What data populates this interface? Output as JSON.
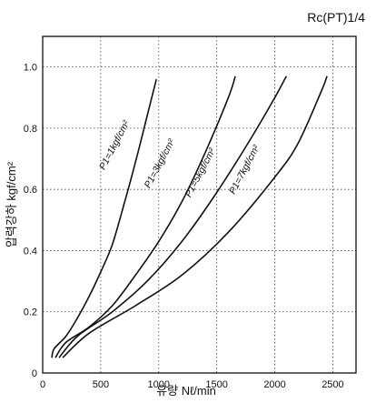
{
  "chart_data": {
    "type": "line",
    "title": "Rc(PT)1/4",
    "xlabel": "유량 Nℓ/min",
    "ylabel": "압력강하 kgf/cm²",
    "xlim": [
      0,
      2700
    ],
    "ylim": [
      0,
      1.1
    ],
    "x_ticks": [
      "0",
      "500",
      "1000",
      "1500",
      "2000",
      "2500"
    ],
    "y_ticks": [
      "0",
      "0.2",
      "0.4",
      "0.6",
      "0.8",
      "1.0"
    ],
    "x_tick_values": [
      0,
      500,
      1000,
      1500,
      2000,
      2500
    ],
    "y_tick_values": [
      0,
      0.2,
      0.4,
      0.6,
      0.8,
      1.0
    ],
    "grid": true,
    "grid_style": "dotted",
    "line_color": "#111111",
    "series": [
      {
        "name": "P1=1kgf/cm²",
        "x": [
          0,
          100,
          200,
          300,
          400,
          500,
          600,
          700,
          800,
          900,
          980
        ],
        "y": [
          0.05,
          0.08,
          0.12,
          0.18,
          0.25,
          0.33,
          0.42,
          0.55,
          0.69,
          0.84,
          0.96
        ]
      },
      {
        "name": "P1=3kgf/cm²",
        "x": [
          0,
          200,
          400,
          600,
          800,
          1000,
          1200,
          1400,
          1600,
          1660
        ],
        "y": [
          0.05,
          0.1,
          0.15,
          0.22,
          0.32,
          0.43,
          0.56,
          0.72,
          0.9,
          0.97
        ]
      },
      {
        "name": "P1=5kgf/cm²",
        "x": [
          0,
          300,
          600,
          900,
          1200,
          1500,
          1800,
          2000,
          2100
        ],
        "y": [
          0.05,
          0.12,
          0.2,
          0.3,
          0.43,
          0.59,
          0.77,
          0.9,
          0.97
        ]
      },
      {
        "name": "P1=7kgf/cm²",
        "x": [
          0,
          400,
          800,
          1200,
          1600,
          2000,
          2200,
          2400,
          2450
        ],
        "y": [
          0.05,
          0.13,
          0.22,
          0.32,
          0.46,
          0.64,
          0.75,
          0.92,
          0.97
        ]
      }
    ],
    "curve_labels": [
      {
        "text": "P1=1kgf/cm²",
        "x": 640,
        "y": 0.74
      },
      {
        "text": "P1=3kgf/cm²",
        "x": 1030,
        "y": 0.68
      },
      {
        "text": "P1=5kgf/cm²",
        "x": 1380,
        "y": 0.65
      },
      {
        "text": "P1=7kgf/cm²",
        "x": 1760,
        "y": 0.66
      }
    ]
  }
}
